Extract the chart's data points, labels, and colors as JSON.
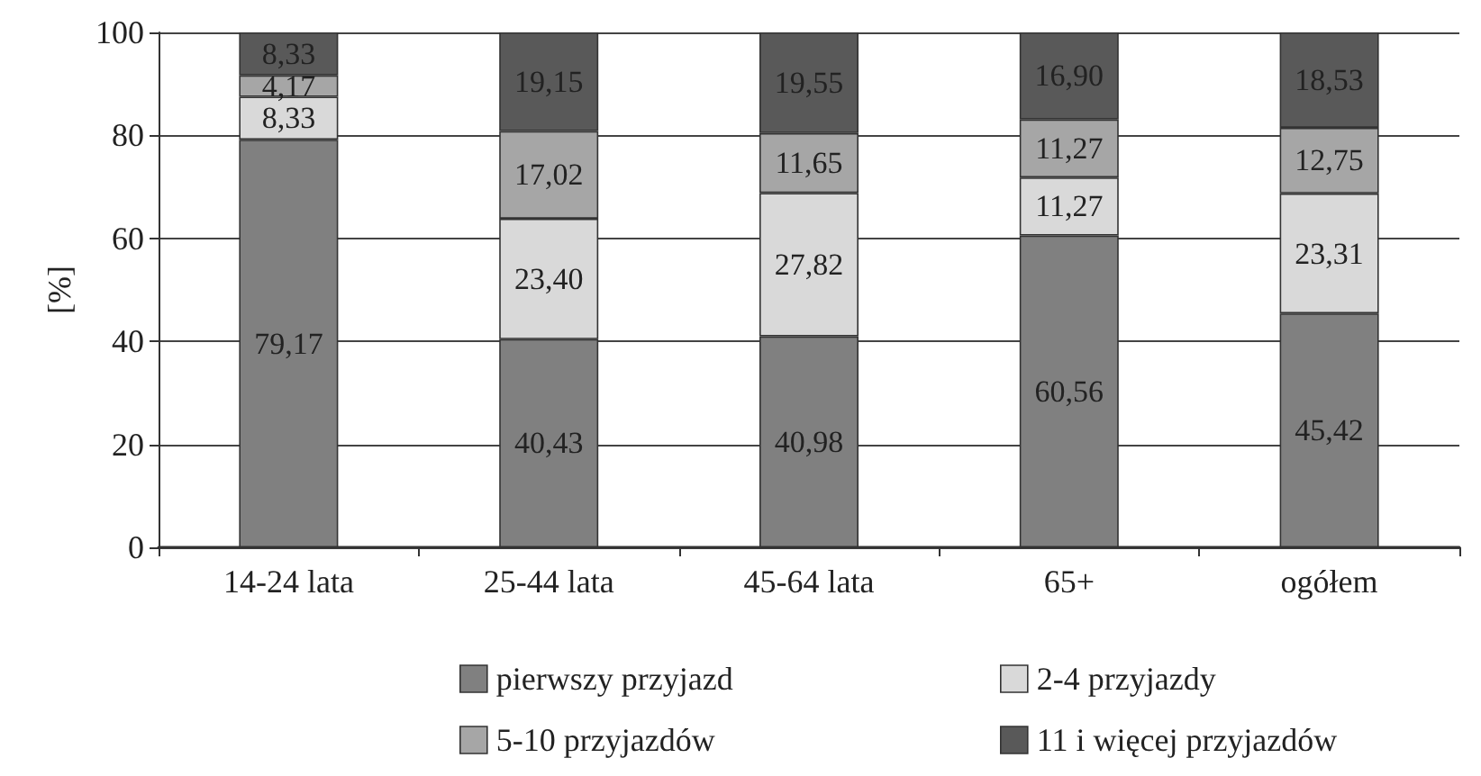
{
  "chart_data": {
    "type": "bar",
    "stacked": true,
    "ylabel": "[%]",
    "categories": [
      "14-24 lata",
      "25-44 lata",
      "45-64 lata",
      "65+",
      "ogółem"
    ],
    "series": [
      {
        "name": "pierwszy przyjazd",
        "color": "#808080",
        "values": [
          79.17,
          40.43,
          40.98,
          60.56,
          45.42
        ],
        "value_labels": [
          "79,17",
          "40,43",
          "40,98",
          "60,56",
          "45,42"
        ]
      },
      {
        "name": "2-4 przyjazdy",
        "color": "#d9d9d9",
        "values": [
          8.33,
          23.4,
          27.82,
          11.27,
          23.31
        ],
        "value_labels": [
          "8,33",
          "23,40",
          "27,82",
          "11,27",
          "23,31"
        ]
      },
      {
        "name": "5-10 przyjazdów",
        "color": "#a6a6a6",
        "values": [
          4.17,
          17.02,
          11.65,
          11.27,
          12.75
        ],
        "value_labels": [
          "4,17",
          "17,02",
          "11,65",
          "11,27",
          "12,75"
        ]
      },
      {
        "name": "11 i więcej przyjazdów",
        "color": "#595959",
        "values": [
          8.33,
          19.15,
          19.55,
          16.9,
          18.53
        ],
        "value_labels": [
          "8,33",
          "19,15",
          "19,55",
          "16,90",
          "18,53"
        ]
      }
    ],
    "ylim": [
      0,
      100
    ],
    "yticks": [
      0,
      20,
      40,
      60,
      80,
      100
    ],
    "grid": "y",
    "legend": "bottom"
  }
}
